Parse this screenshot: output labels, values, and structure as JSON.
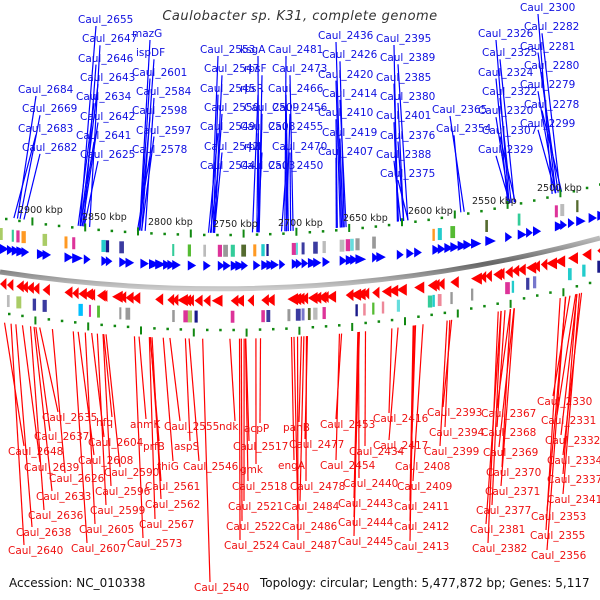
{
  "title": "Caulobacter sp. K31, complete genome",
  "footer": {
    "accession": "Accession: NC_010338",
    "summary": "Topology: circular; Length: 5,477,872 bp; Genes: 5,117"
  },
  "colors": {
    "forward_strand": "#0000ff",
    "reverse_strand": "#ff0000",
    "backbone": "#888888",
    "tick_marks": "#118811",
    "text": "#222222"
  },
  "scale_ticks": [
    "2900 kbp",
    "2850 kbp",
    "2800 kbp",
    "2750 kbp",
    "2700 kbp",
    "2650 kbp",
    "2600 kbp",
    "2550 kbp",
    "2500 kbp"
  ],
  "forward_labels": [
    {
      "text": "Caul_2655",
      "col": 0,
      "row": 0
    },
    {
      "text": "Caul_2647",
      "col": 0,
      "row": 1
    },
    {
      "text": "Caul_2646",
      "col": 0,
      "row": 2
    },
    {
      "text": "Caul_2643",
      "col": 0,
      "row": 3
    },
    {
      "text": "Caul_2634",
      "col": 0,
      "row": 4
    },
    {
      "text": "Caul_2642",
      "col": 0,
      "row": 5
    },
    {
      "text": "Caul_2641",
      "col": 0,
      "row": 6
    },
    {
      "text": "Caul_2625",
      "col": 0,
      "row": 7
    },
    {
      "text": "Caul_2684",
      "col": 1,
      "row": 0
    },
    {
      "text": "Caul_2669",
      "col": 1,
      "row": 1
    },
    {
      "text": "Caul_2683",
      "col": 1,
      "row": 2
    },
    {
      "text": "Caul_2682",
      "col": 1,
      "row": 3
    },
    {
      "text": "mazG",
      "col": 2,
      "row": 0
    },
    {
      "text": "ispDF",
      "col": 2,
      "row": 1
    },
    {
      "text": "Caul_2601",
      "col": 2,
      "row": 2
    },
    {
      "text": "Caul_2584",
      "col": 2,
      "row": 3
    },
    {
      "text": "Caul_2598",
      "col": 2,
      "row": 4
    },
    {
      "text": "Caul_2597",
      "col": 2,
      "row": 5
    },
    {
      "text": "Caul_2578",
      "col": 2,
      "row": 6
    },
    {
      "text": "Caul_2553",
      "col": 3,
      "row": 0
    },
    {
      "text": "Caul_2547",
      "col": 3,
      "row": 1
    },
    {
      "text": "Caul_2545",
      "col": 3,
      "row": 2
    },
    {
      "text": "Caul_2550",
      "col": 3,
      "row": 3
    },
    {
      "text": "Caul_2549",
      "col": 3,
      "row": 4
    },
    {
      "text": "Caul_2542",
      "col": 3,
      "row": 5
    },
    {
      "text": "Caul_2544",
      "col": 3,
      "row": 6
    },
    {
      "text": "ksgA",
      "col": 4,
      "row": 0
    },
    {
      "text": "rpsF",
      "col": 4,
      "row": 1
    },
    {
      "text": "rpsR",
      "col": 4,
      "row": 2
    },
    {
      "text": "Caul_2509",
      "col": 4,
      "row": 3
    },
    {
      "text": "Caul_2508",
      "col": 4,
      "row": 4
    },
    {
      "text": "rplI",
      "col": 4,
      "row": 5
    },
    {
      "text": "Caul_2503",
      "col": 4,
      "row": 6
    },
    {
      "text": "Caul_2481",
      "col": 5,
      "row": 0
    },
    {
      "text": "Caul_2473",
      "col": 5,
      "row": 1
    },
    {
      "text": "Caul_2466",
      "col": 5,
      "row": 2
    },
    {
      "text": "Caul_2456",
      "col": 5,
      "row": 3
    },
    {
      "text": "Caul_2455",
      "col": 5,
      "row": 4
    },
    {
      "text": "Caul_2470",
      "col": 5,
      "row": 5
    },
    {
      "text": "Caul_2450",
      "col": 5,
      "row": 6
    },
    {
      "text": "Caul_2436",
      "col": 6,
      "row": 0
    },
    {
      "text": "Caul_2426",
      "col": 6,
      "row": 1
    },
    {
      "text": "Caul_2420",
      "col": 6,
      "row": 2
    },
    {
      "text": "Caul_2414",
      "col": 6,
      "row": 3
    },
    {
      "text": "Caul_2410",
      "col": 6,
      "row": 4
    },
    {
      "text": "Caul_2419",
      "col": 6,
      "row": 5
    },
    {
      "text": "Caul_2407",
      "col": 6,
      "row": 6
    },
    {
      "text": "Caul_2395",
      "col": 7,
      "row": 0
    },
    {
      "text": "Caul_2389",
      "col": 7,
      "row": 1
    },
    {
      "text": "Caul_2385",
      "col": 7,
      "row": 2
    },
    {
      "text": "Caul_2380",
      "col": 7,
      "row": 3
    },
    {
      "text": "Caul_2401",
      "col": 7,
      "row": 4
    },
    {
      "text": "Caul_2376",
      "col": 7,
      "row": 5
    },
    {
      "text": "Caul_2388",
      "col": 7,
      "row": 6
    },
    {
      "text": "Caul_2375",
      "col": 7,
      "row": 7
    },
    {
      "text": "Caul_2365",
      "col": 8,
      "row": 0
    },
    {
      "text": "Caul_2354",
      "col": 8,
      "row": 1
    },
    {
      "text": "Caul_2326",
      "col": 9,
      "row": 0
    },
    {
      "text": "Caul_2325",
      "col": 9,
      "row": 1
    },
    {
      "text": "Caul_2324",
      "col": 9,
      "row": 2
    },
    {
      "text": "Caul_2322",
      "col": 9,
      "row": 3
    },
    {
      "text": "Caul_2320",
      "col": 9,
      "row": 4
    },
    {
      "text": "Caul_2307",
      "col": 9,
      "row": 5
    },
    {
      "text": "Caul_2329",
      "col": 9,
      "row": 6
    },
    {
      "text": "Caul_2300",
      "col": 10,
      "row": 0
    },
    {
      "text": "Caul_2282",
      "col": 10,
      "row": 1
    },
    {
      "text": "Caul_2281",
      "col": 10,
      "row": 2
    },
    {
      "text": "Caul_2280",
      "col": 10,
      "row": 3
    },
    {
      "text": "Caul_2279",
      "col": 10,
      "row": 4
    },
    {
      "text": "Caul_2278",
      "col": 10,
      "row": 5
    },
    {
      "text": "Caul_2299",
      "col": 10,
      "row": 6
    }
  ],
  "reverse_labels": [
    {
      "text": "Caul_2635"
    },
    {
      "text": "Caul_2637"
    },
    {
      "text": "Caul_2648"
    },
    {
      "text": "Caul_2639"
    },
    {
      "text": "Caul_2626"
    },
    {
      "text": "Caul_2633"
    },
    {
      "text": "Caul_2636"
    },
    {
      "text": "Caul_2638"
    },
    {
      "text": "Caul_2640"
    },
    {
      "text": "hfq"
    },
    {
      "text": "Caul_2604"
    },
    {
      "text": "Caul_2608"
    },
    {
      "text": "Caul_2590"
    },
    {
      "text": "Caul_2596"
    },
    {
      "text": "Caul_2599"
    },
    {
      "text": "Caul_2605"
    },
    {
      "text": "Caul_2607"
    },
    {
      "text": "anmK"
    },
    {
      "text": "prfB"
    },
    {
      "text": "thiG"
    },
    {
      "text": "Caul_2561"
    },
    {
      "text": "Caul_2562"
    },
    {
      "text": "Caul_2567"
    },
    {
      "text": "Caul_2573"
    },
    {
      "text": "Caul_2555"
    },
    {
      "text": "aspS"
    },
    {
      "text": "ndk"
    },
    {
      "text": "Caul_2546"
    },
    {
      "text": "Caul_2540"
    },
    {
      "text": "acpP"
    },
    {
      "text": "Caul_2517"
    },
    {
      "text": "gmk"
    },
    {
      "text": "Caul_2518"
    },
    {
      "text": "Caul_2521"
    },
    {
      "text": "Caul_2522"
    },
    {
      "text": "Caul_2524"
    },
    {
      "text": "panB"
    },
    {
      "text": "Caul_2477"
    },
    {
      "text": "engA"
    },
    {
      "text": "Caul_2478"
    },
    {
      "text": "Caul_2484"
    },
    {
      "text": "Caul_2486"
    },
    {
      "text": "Caul_2487"
    },
    {
      "text": "Caul_2453"
    },
    {
      "text": "Caul_2454"
    },
    {
      "text": "Caul_2434"
    },
    {
      "text": "Caul_2440"
    },
    {
      "text": "Caul_2443"
    },
    {
      "text": "Caul_2444"
    },
    {
      "text": "Caul_2445"
    },
    {
      "text": "Caul_2416"
    },
    {
      "text": "Caul_2417"
    },
    {
      "text": "Caul_2408"
    },
    {
      "text": "Caul_2409"
    },
    {
      "text": "Caul_2411"
    },
    {
      "text": "Caul_2412"
    },
    {
      "text": "Caul_2413"
    },
    {
      "text": "Caul_2393"
    },
    {
      "text": "Caul_2394"
    },
    {
      "text": "Caul_2399"
    },
    {
      "text": "Caul_2367"
    },
    {
      "text": "Caul_2368"
    },
    {
      "text": "Caul_2369"
    },
    {
      "text": "Caul_2370"
    },
    {
      "text": "Caul_2371"
    },
    {
      "text": "Caul_2377"
    },
    {
      "text": "Caul_2381"
    },
    {
      "text": "Caul_2382"
    },
    {
      "text": "Caul_2330"
    },
    {
      "text": "Caul_2331"
    },
    {
      "text": "Caul_2332"
    },
    {
      "text": "Caul_2334"
    },
    {
      "text": "Caul_2337"
    },
    {
      "text": "Caul_2341"
    },
    {
      "text": "Caul_2353"
    },
    {
      "text": "Caul_2355"
    },
    {
      "text": "Caul_2356"
    }
  ]
}
